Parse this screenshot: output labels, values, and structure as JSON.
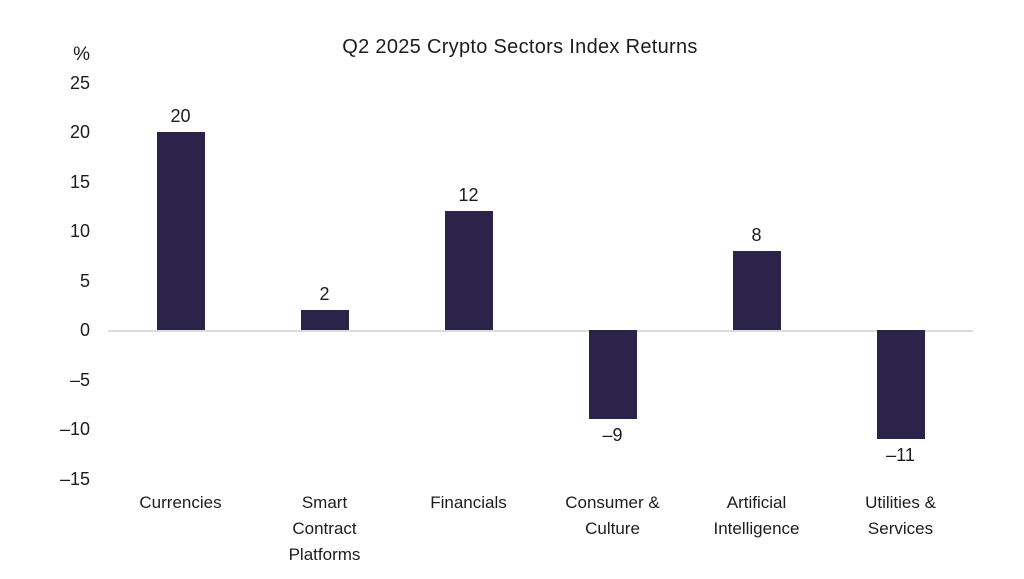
{
  "chart_data": {
    "type": "bar",
    "title": "Q2 2025 Crypto Sectors Index Returns",
    "unit_label": "%",
    "categories": [
      "Currencies",
      "Smart Contract Platforms",
      "Financials",
      "Consumer & Culture",
      "Artificial Intelligence",
      "Utilities & Services"
    ],
    "x_display_labels": [
      "Currencies",
      "Smart\nContract\nPlatforms",
      "Financials",
      "Consumer &\nCulture",
      "Artificial\nIntelligence",
      "Utilities &\nServices"
    ],
    "values": [
      20,
      2,
      12,
      -9,
      8,
      -11
    ],
    "value_labels": [
      "20",
      "2",
      "12",
      "–9",
      "8",
      "–11"
    ],
    "y_ticks": [
      25,
      20,
      15,
      10,
      5,
      0,
      -5,
      -10,
      -15
    ],
    "y_tick_labels": [
      "25",
      "20",
      "15",
      "10",
      "5",
      "0",
      "–5",
      "–10",
      "–15"
    ],
    "ylim": [
      -15,
      25
    ],
    "xlabel": "",
    "ylabel": "%",
    "grid": false,
    "legend_position": "none",
    "bar_color": "#2b2349",
    "axis_line_color": "#dcdcdc",
    "text_color": "#1c1c1c"
  }
}
